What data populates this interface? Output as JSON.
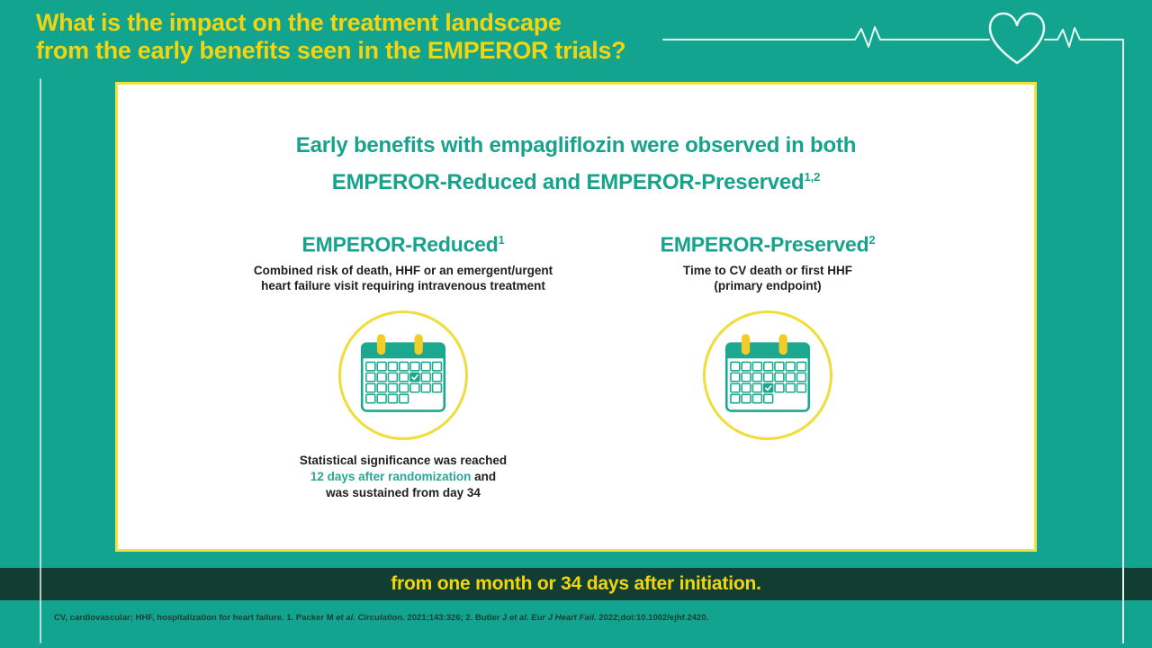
{
  "page": {
    "title_line1": "What is the impact on the treatment landscape",
    "title_line2": "from the early benefits seen in the EMPEROR trials?"
  },
  "card": {
    "heading_line1": "Early benefits with empagliflozin were observed in both",
    "heading_line2": "EMPEROR-Reduced and EMPEROR-Preserved",
    "heading_sup": "1,2",
    "columns": {
      "reduced": {
        "title": "EMPEROR-Reduced",
        "title_sup": "1",
        "subtitle_line1": "Combined risk of death, HHF or an emergent/urgent",
        "subtitle_line2": "heart failure visit requiring intravenous treatment",
        "caption_line1": "Statistical significance was reached",
        "caption_highlight": "12 days after randomization",
        "caption_line2_rest": " and",
        "caption_line3": "was sustained from day 34",
        "calendar_checked": {
          "row": 1,
          "col": 4
        }
      },
      "preserved": {
        "title": "EMPEROR-Preserved",
        "title_sup": "2",
        "subtitle_line1": "Time to CV death or first HHF",
        "subtitle_line2": "(primary endpoint)",
        "calendar_checked": {
          "row": 2,
          "col": 3
        }
      }
    }
  },
  "banner": {
    "text": "from one month or 34 days after initiation."
  },
  "footnote": {
    "part1": "CV, cardiovascular; HHF, hospitalization for heart failure. 1. Packer M ",
    "italic1": "et al. Circulation.",
    "part2": " 2021;143:326; 2. Butler J ",
    "italic2": "et al. Eur J Heart Fail.",
    "part3": " 2022;doi:10.1002/ejhf.2420."
  },
  "icons": {
    "top_right": "heartbeat-ecg-heart-line",
    "columns": "calendar-with-checkmark"
  },
  "colors": {
    "background_teal": "#12A48F",
    "dark_band": "#123D32",
    "accent_yellow": "#F2D511",
    "card_border_yellow": "#EFE23D",
    "circle_yellow": "#F0DC3A",
    "pin_yellow": "#F2CC29",
    "calendar_teal": "#1CA78F",
    "teal_text": "#17A28C",
    "highlight_teal": "#28A796",
    "dark_text": "#202020",
    "ecg_line": "#E9F7F3"
  }
}
